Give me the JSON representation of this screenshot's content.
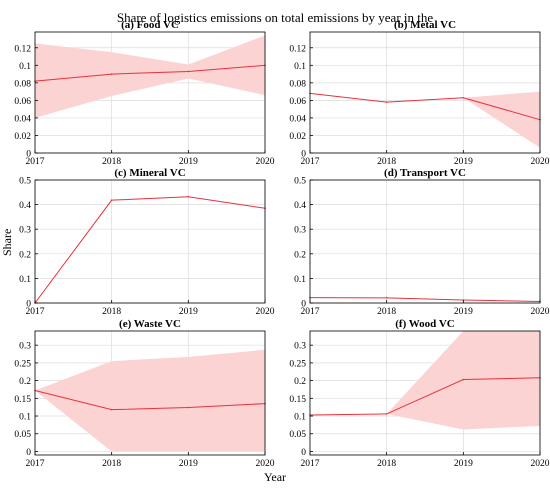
{
  "figure": {
    "title": "Share of logistics emissions on total emissions by year in the",
    "ylabel": "Share",
    "xlabel": "Year",
    "line_color": "#e8313b",
    "band_color": "#fcd3d3"
  },
  "chart_data": [
    {
      "type": "line",
      "title": "(a) Food VC",
      "x": [
        2017,
        2018,
        2019,
        2020
      ],
      "series": [
        {
          "values": [
            0.082,
            0.09,
            0.093,
            0.1
          ],
          "lower": [
            0.04,
            0.065,
            0.085,
            0.066
          ],
          "upper": [
            0.125,
            0.115,
            0.101,
            0.134
          ]
        }
      ],
      "xlim": [
        2017,
        2020
      ],
      "ylim": [
        0,
        0.138
      ],
      "yticks": [
        0,
        0.02,
        0.04,
        0.06,
        0.08,
        0.1,
        0.12
      ],
      "ytick_labels": [
        "0",
        "0.02",
        "0.04",
        "0.06",
        "0.08",
        "0.1",
        "0.12"
      ],
      "grid": true
    },
    {
      "type": "line",
      "title": "(b) Metal VC",
      "x": [
        2017,
        2018,
        2019,
        2020
      ],
      "series": [
        {
          "values": [
            0.068,
            0.058,
            0.063,
            0.038
          ],
          "lower": [
            0.068,
            0.058,
            0.063,
            0.006
          ],
          "upper": [
            0.068,
            0.058,
            0.063,
            0.07
          ]
        }
      ],
      "xlim": [
        2017,
        2020
      ],
      "ylim": [
        0,
        0.138
      ],
      "yticks": [
        0,
        0.02,
        0.04,
        0.06,
        0.08,
        0.1,
        0.12
      ],
      "ytick_labels": [
        "0",
        "0.02",
        "0.04",
        "0.06",
        "0.08",
        "0.1",
        "0.12"
      ],
      "grid": true
    },
    {
      "type": "line",
      "title": "(c) Mineral VC",
      "x": [
        2017,
        2018,
        2019,
        2020
      ],
      "series": [
        {
          "values": [
            0.0,
            0.418,
            0.432,
            0.385
          ],
          "lower": [
            0.0,
            0.418,
            0.432,
            0.385
          ],
          "upper": [
            0.0,
            0.418,
            0.432,
            0.385
          ]
        }
      ],
      "xlim": [
        2017,
        2020
      ],
      "ylim": [
        0,
        0.5
      ],
      "yticks": [
        0,
        0.1,
        0.2,
        0.3,
        0.4,
        0.5
      ],
      "ytick_labels": [
        "0",
        "0.1",
        "0.2",
        "0.3",
        "0.4",
        "0.5"
      ],
      "grid": true
    },
    {
      "type": "line",
      "title": "(d) Transport VC",
      "x": [
        2017,
        2018,
        2019,
        2020
      ],
      "series": [
        {
          "values": [
            0.022,
            0.021,
            0.012,
            0.006
          ],
          "lower": [
            0.022,
            0.021,
            0.012,
            0.006
          ],
          "upper": [
            0.022,
            0.021,
            0.012,
            0.006
          ]
        }
      ],
      "xlim": [
        2017,
        2020
      ],
      "ylim": [
        0,
        0.5
      ],
      "yticks": [
        0,
        0.1,
        0.2,
        0.3,
        0.4,
        0.5
      ],
      "ytick_labels": [
        "0",
        "0.1",
        "0.2",
        "0.3",
        "0.4",
        "0.5"
      ],
      "grid": true
    },
    {
      "type": "line",
      "title": "(e) Waste VC",
      "x": [
        2017,
        2018,
        2019,
        2020
      ],
      "series": [
        {
          "values": [
            0.172,
            0.118,
            0.124,
            0.135
          ],
          "lower": [
            0.172,
            0.0,
            0.0,
            0.0
          ],
          "upper": [
            0.172,
            0.255,
            0.267,
            0.287
          ]
        }
      ],
      "xlim": [
        2017,
        2020
      ],
      "ylim": [
        -0.01,
        0.34
      ],
      "yticks": [
        0,
        0.05,
        0.1,
        0.15,
        0.2,
        0.25,
        0.3
      ],
      "ytick_labels": [
        "0",
        "0.05",
        "0.1",
        "0.15",
        "0.2",
        "0.25",
        "0.3"
      ],
      "grid": true
    },
    {
      "type": "line",
      "title": "(f) Wood VC",
      "x": [
        2017,
        2018,
        2019,
        2020
      ],
      "series": [
        {
          "values": [
            0.103,
            0.106,
            0.203,
            0.208
          ],
          "lower": [
            0.103,
            0.106,
            0.062,
            0.072
          ],
          "upper": [
            0.103,
            0.106,
            0.34,
            0.34
          ]
        }
      ],
      "xlim": [
        2017,
        2020
      ],
      "ylim": [
        -0.01,
        0.34
      ],
      "yticks": [
        0,
        0.05,
        0.1,
        0.15,
        0.2,
        0.25,
        0.3
      ],
      "ytick_labels": [
        "0",
        "0.05",
        "0.1",
        "0.15",
        "0.2",
        "0.25",
        "0.3"
      ],
      "grid": true
    }
  ]
}
